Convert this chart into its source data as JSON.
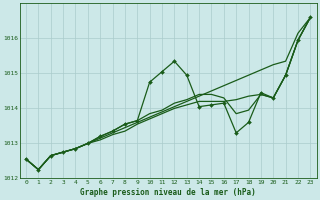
{
  "title": "",
  "xlabel": "Graphe pression niveau de la mer (hPa)",
  "background_color": "#cce8e8",
  "grid_color": "#aacccc",
  "line_color": "#1a5c1a",
  "ylim": [
    1012.0,
    1017.0
  ],
  "xlim": [
    -0.5,
    23.5
  ],
  "yticks": [
    1012,
    1013,
    1014,
    1015,
    1016
  ],
  "xticks": [
    0,
    1,
    2,
    3,
    4,
    5,
    6,
    7,
    8,
    9,
    10,
    11,
    12,
    13,
    14,
    15,
    16,
    17,
    18,
    19,
    20,
    21,
    22,
    23
  ],
  "series_with_markers": [
    [
      1012.55,
      1012.25,
      1012.65,
      1012.75,
      1012.85,
      1013.0,
      1013.2,
      1013.35,
      1013.55,
      1013.65,
      1014.75,
      1015.05,
      1015.35,
      1014.95,
      1014.05,
      1014.1,
      1014.15,
      1013.3,
      1013.6,
      1014.45,
      1014.3,
      1014.95,
      1015.95,
      1016.6
    ]
  ],
  "series_no_markers": [
    [
      1012.55,
      1012.25,
      1012.65,
      1012.75,
      1012.85,
      1013.0,
      1013.2,
      1013.35,
      1013.55,
      1013.65,
      1013.85,
      1013.95,
      1014.15,
      1014.25,
      1014.4,
      1014.4,
      1014.3,
      1013.85,
      1013.95,
      1014.4,
      1014.3,
      1014.95,
      1015.95,
      1016.6
    ],
    [
      1012.55,
      1012.25,
      1012.65,
      1012.75,
      1012.85,
      1013.0,
      1013.1,
      1013.25,
      1013.35,
      1013.55,
      1013.7,
      1013.85,
      1014.0,
      1014.1,
      1014.2,
      1014.2,
      1014.2,
      1014.25,
      1014.35,
      1014.4,
      1014.3,
      1014.95,
      1015.95,
      1016.6
    ],
    [
      1012.55,
      1012.25,
      1012.65,
      1012.75,
      1012.85,
      1013.0,
      1013.15,
      1013.3,
      1013.45,
      1013.6,
      1013.75,
      1013.9,
      1014.05,
      1014.2,
      1014.35,
      1014.5,
      1014.65,
      1014.8,
      1014.95,
      1015.1,
      1015.25,
      1015.35,
      1016.15,
      1016.6
    ]
  ]
}
